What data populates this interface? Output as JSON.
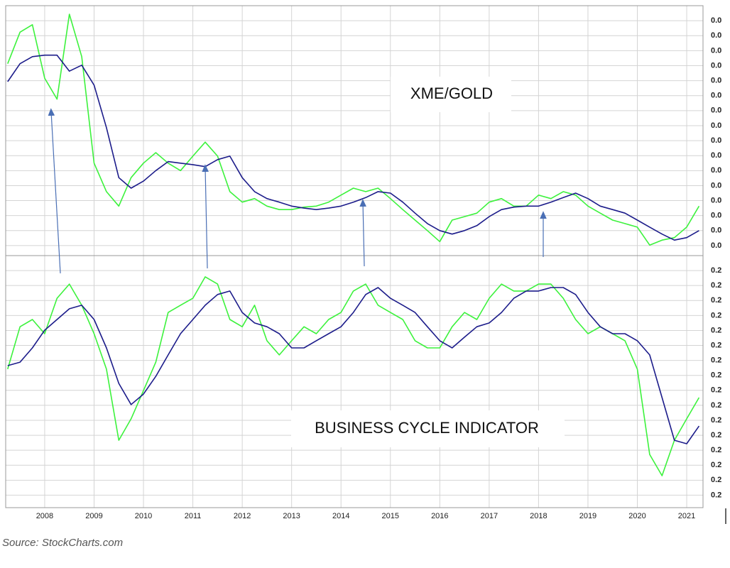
{
  "chart_data": [
    {
      "type": "line",
      "annotations": [
        "XME/GOLD"
      ],
      "x": [
        2007.25,
        2007.5,
        2007.75,
        2008,
        2008.25,
        2008.5,
        2008.75,
        2009,
        2009.25,
        2009.5,
        2009.75,
        2010,
        2010.25,
        2010.5,
        2010.75,
        2011,
        2011.25,
        2011.5,
        2011.75,
        2012,
        2012.25,
        2012.5,
        2012.75,
        2013,
        2013.25,
        2013.5,
        2013.75,
        2014,
        2014.25,
        2014.5,
        2014.75,
        2015,
        2015.25,
        2015.5,
        2015.75,
        2016,
        2016.25,
        2016.5,
        2016.75,
        2017,
        2017.25,
        2017.5,
        2017.75,
        2018,
        2018.25,
        2018.5,
        2018.75,
        2019,
        2019.25,
        2019.5,
        2019.75,
        2020,
        2020.25,
        2020.5,
        2020.75,
        2021,
        2021.25
      ],
      "xlim": [
        2007.21,
        2021.33
      ],
      "xticks": [
        2008,
        2009,
        2010,
        2011,
        2012,
        2013,
        2014,
        2015,
        2016,
        2017,
        2018,
        2019,
        2020,
        2021
      ],
      "ylim": [
        0,
        0.05
      ],
      "yticks": [
        {
          "value": 0.047,
          "label": "0.0"
        },
        {
          "value": 0.044,
          "label": "0.0"
        },
        {
          "value": 0.041,
          "label": "0.0"
        },
        {
          "value": 0.038,
          "label": "0.0"
        },
        {
          "value": 0.035,
          "label": "0.0"
        },
        {
          "value": 0.032,
          "label": "0.0"
        },
        {
          "value": 0.029,
          "label": "0.0"
        },
        {
          "value": 0.026,
          "label": "0.0"
        },
        {
          "value": 0.023,
          "label": "0.0"
        },
        {
          "value": 0.02,
          "label": "0.0"
        },
        {
          "value": 0.017,
          "label": "0.0"
        },
        {
          "value": 0.014,
          "label": "0.0"
        },
        {
          "value": 0.011,
          "label": "0.0"
        },
        {
          "value": 0.008,
          "label": "0.0"
        },
        {
          "value": 0.005,
          "label": "0.0"
        },
        {
          "value": 0.002,
          "label": "0.0"
        }
      ],
      "grid": true,
      "series": [
        {
          "color": "#3cf23c",
          "values": [
            0.0384,
            0.0447,
            0.0462,
            0.0355,
            0.0313,
            0.0483,
            0.0398,
            0.0185,
            0.0128,
            0.0099,
            0.0156,
            0.0185,
            0.0206,
            0.0185,
            0.017,
            0.0199,
            0.0227,
            0.0199,
            0.0128,
            0.0107,
            0.0114,
            0.0099,
            0.0092,
            0.0092,
            0.0097,
            0.0099,
            0.0107,
            0.0121,
            0.0135,
            0.0128,
            0.0135,
            0.0114,
            0.0092,
            0.0071,
            0.005,
            0.0028,
            0.0071,
            0.0078,
            0.0085,
            0.0107,
            0.0114,
            0.0099,
            0.0099,
            0.0121,
            0.0114,
            0.0128,
            0.0121,
            0.0099,
            0.0085,
            0.0071,
            0.0064,
            0.0057,
            0.0021,
            0.0031,
            0.0036,
            0.0057,
            0.0099
          ]
        },
        {
          "color": "#1c1c8a",
          "values": [
            0.0348,
            0.0384,
            0.0398,
            0.0401,
            0.0401,
            0.0369,
            0.0381,
            0.0341,
            0.0256,
            0.0156,
            0.0135,
            0.0149,
            0.017,
            0.0188,
            0.0185,
            0.0182,
            0.0178,
            0.0192,
            0.0199,
            0.0156,
            0.0128,
            0.0114,
            0.0107,
            0.0099,
            0.0095,
            0.0092,
            0.0095,
            0.0099,
            0.0107,
            0.0116,
            0.0128,
            0.0125,
            0.0107,
            0.0085,
            0.0064,
            0.005,
            0.0043,
            0.005,
            0.006,
            0.0078,
            0.0092,
            0.0097,
            0.0099,
            0.0099,
            0.0107,
            0.0116,
            0.0125,
            0.0114,
            0.0099,
            0.0092,
            0.0085,
            0.0071,
            0.0057,
            0.0043,
            0.0031,
            0.0036,
            0.005
          ]
        }
      ]
    },
    {
      "type": "line",
      "annotations": [
        "BUSINESS CYCLE INDICATOR"
      ],
      "x": [
        2007.25,
        2007.5,
        2007.75,
        2008,
        2008.25,
        2008.5,
        2008.75,
        2009,
        2009.25,
        2009.5,
        2009.75,
        2010,
        2010.25,
        2010.5,
        2010.75,
        2011,
        2011.25,
        2011.5,
        2011.75,
        2012,
        2012.25,
        2012.5,
        2012.75,
        2013,
        2013.25,
        2013.5,
        2013.75,
        2014,
        2014.25,
        2014.5,
        2014.75,
        2015,
        2015.25,
        2015.5,
        2015.75,
        2016,
        2016.25,
        2016.5,
        2016.75,
        2017,
        2017.25,
        2017.5,
        2017.75,
        2018,
        2018.25,
        2018.5,
        2018.75,
        2019,
        2019.25,
        2019.5,
        2019.75,
        2020,
        2020.25,
        2020.5,
        2020.75,
        2021,
        2021.25
      ],
      "xlim": [
        2007.21,
        2021.33
      ],
      "xticks": [
        2008,
        2009,
        2010,
        2011,
        2012,
        2013,
        2014,
        2015,
        2016,
        2017,
        2018,
        2019,
        2020,
        2021
      ],
      "ylim": [
        0.15,
        0.251
      ],
      "yticks": [
        {
          "value": 0.245,
          "label": "0.2"
        },
        {
          "value": 0.239,
          "label": "0.2"
        },
        {
          "value": 0.233,
          "label": "0.2"
        },
        {
          "value": 0.227,
          "label": "0.2"
        },
        {
          "value": 0.221,
          "label": "0.2"
        },
        {
          "value": 0.215,
          "label": "0.2"
        },
        {
          "value": 0.209,
          "label": "0.2"
        },
        {
          "value": 0.203,
          "label": "0.2"
        },
        {
          "value": 0.197,
          "label": "0.2"
        },
        {
          "value": 0.191,
          "label": "0.2"
        },
        {
          "value": 0.185,
          "label": "0.2"
        },
        {
          "value": 0.179,
          "label": "0.2"
        },
        {
          "value": 0.173,
          "label": "0.2"
        },
        {
          "value": 0.167,
          "label": "0.2"
        },
        {
          "value": 0.161,
          "label": "0.2"
        },
        {
          "value": 0.155,
          "label": "0.2"
        }
      ],
      "grid": true,
      "series": [
        {
          "color": "#3cf23c",
          "values": [
            0.2055,
            0.2225,
            0.2254,
            0.2197,
            0.2339,
            0.2396,
            0.2311,
            0.2197,
            0.2055,
            0.177,
            0.1856,
            0.1969,
            0.2083,
            0.2282,
            0.2311,
            0.2339,
            0.2425,
            0.2396,
            0.2254,
            0.2225,
            0.2311,
            0.2169,
            0.2112,
            0.2169,
            0.2225,
            0.2197,
            0.2254,
            0.2282,
            0.2368,
            0.2396,
            0.2311,
            0.2282,
            0.2254,
            0.2169,
            0.214,
            0.214,
            0.2225,
            0.2282,
            0.2254,
            0.2339,
            0.2396,
            0.2368,
            0.2368,
            0.2396,
            0.2396,
            0.2339,
            0.2254,
            0.2197,
            0.2225,
            0.2197,
            0.2169,
            0.2055,
            0.1713,
            0.1628,
            0.177,
            0.1856,
            0.1941
          ]
        },
        {
          "color": "#1c1c8a",
          "values": [
            0.2069,
            0.2083,
            0.214,
            0.2211,
            0.2254,
            0.2297,
            0.2311,
            0.2254,
            0.214,
            0.1998,
            0.1913,
            0.1955,
            0.2026,
            0.2112,
            0.2197,
            0.2254,
            0.2311,
            0.2354,
            0.2368,
            0.2282,
            0.224,
            0.2225,
            0.2197,
            0.214,
            0.214,
            0.2169,
            0.2197,
            0.2225,
            0.2282,
            0.2354,
            0.2382,
            0.2339,
            0.2311,
            0.2282,
            0.2225,
            0.2169,
            0.214,
            0.2183,
            0.2225,
            0.224,
            0.2282,
            0.2339,
            0.2368,
            0.2368,
            0.2382,
            0.2382,
            0.2354,
            0.2282,
            0.2225,
            0.2197,
            0.2197,
            0.2169,
            0.2112,
            0.1941,
            0.177,
            0.1756,
            0.1827
          ]
        }
      ]
    }
  ],
  "source": "Source: StockCharts.com"
}
